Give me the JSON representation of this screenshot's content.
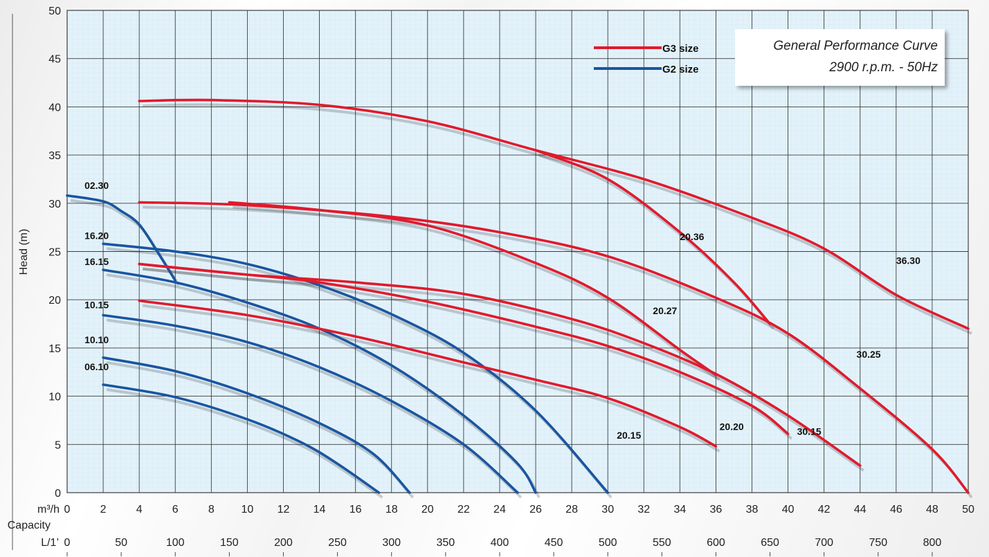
{
  "chart_data": {
    "type": "line",
    "title": "",
    "xlabel": "Capacity",
    "ylabel": "Head (m)",
    "x_unit_label": "m³/h",
    "x2_unit_label": "L/1’",
    "xlim": [
      0,
      50
    ],
    "ylim": [
      0,
      50
    ],
    "grid": true,
    "x_ticks": [
      0,
      2,
      4,
      6,
      8,
      10,
      12,
      14,
      16,
      18,
      20,
      22,
      24,
      26,
      28,
      30,
      32,
      34,
      36,
      38,
      40,
      42,
      44,
      46,
      48,
      50
    ],
    "y_ticks": [
      0,
      5,
      10,
      15,
      20,
      25,
      30,
      35,
      40,
      45,
      50
    ],
    "x2_ticks": [
      0,
      50,
      100,
      150,
      200,
      250,
      300,
      350,
      400,
      450,
      500,
      550,
      600,
      650,
      700,
      750,
      800
    ],
    "info_box": {
      "line1": "General Performance Curve",
      "line2": "2900 r.p.m. - 50Hz"
    },
    "legend": [
      {
        "name": "G3 size",
        "color": "#e11a2c"
      },
      {
        "name": "G2 size",
        "color": "#1a55a0"
      }
    ],
    "series": [
      {
        "label": "02.30",
        "group": "G2",
        "color": "#1a55a0",
        "points": [
          [
            0,
            30.8
          ],
          [
            2,
            30.2
          ],
          [
            3,
            29.2
          ],
          [
            4,
            27.8
          ],
          [
            5,
            25
          ],
          [
            6,
            22
          ]
        ],
        "label_pos": [
          2,
          30.5
        ]
      },
      {
        "label": "16.20",
        "group": "G2",
        "color": "#1a55a0",
        "points": [
          [
            2,
            25.8
          ],
          [
            6,
            25
          ],
          [
            10,
            23.7
          ],
          [
            14,
            21.5
          ],
          [
            18,
            18.5
          ],
          [
            22,
            14.5
          ],
          [
            26,
            8.5
          ],
          [
            30,
            0
          ]
        ],
        "label_pos": [
          2,
          25.3
        ]
      },
      {
        "label": "16.15",
        "group": "G2",
        "color": "#1a55a0",
        "points": [
          [
            2,
            23.1
          ],
          [
            6,
            21.8
          ],
          [
            10,
            19.7
          ],
          [
            14,
            17
          ],
          [
            18,
            13.2
          ],
          [
            22,
            8
          ],
          [
            25,
            3
          ],
          [
            26,
            0
          ]
        ],
        "label_pos": [
          2,
          22.6
        ]
      },
      {
        "label": "10.15",
        "group": "G2",
        "color": "#1a55a0",
        "points": [
          [
            2,
            18.4
          ],
          [
            6,
            17.3
          ],
          [
            10,
            15.6
          ],
          [
            14,
            13
          ],
          [
            18,
            9.5
          ],
          [
            22,
            5
          ],
          [
            25,
            0
          ]
        ],
        "label_pos": [
          2,
          18.1
        ]
      },
      {
        "label": "10.10",
        "group": "G2",
        "color": "#1a55a0",
        "points": [
          [
            2,
            14
          ],
          [
            6,
            12.6
          ],
          [
            10,
            10.3
          ],
          [
            14,
            7.2
          ],
          [
            17,
            4
          ],
          [
            19,
            0
          ]
        ],
        "label_pos": [
          2,
          14.5
        ]
      },
      {
        "label": "06.10",
        "group": "G2",
        "color": "#1a55a0",
        "points": [
          [
            2,
            11.2
          ],
          [
            6,
            9.9
          ],
          [
            10,
            7.6
          ],
          [
            13,
            5.2
          ],
          [
            15,
            3
          ],
          [
            17.3,
            0
          ]
        ],
        "label_pos": [
          2,
          11.7
        ]
      },
      {
        "label": "36.30",
        "group": "G3",
        "color": "#e11a2c",
        "points": [
          [
            4,
            40.6
          ],
          [
            8,
            40.7
          ],
          [
            14,
            40.2
          ],
          [
            20,
            38.5
          ],
          [
            26,
            35.5
          ],
          [
            32,
            32.5
          ],
          [
            38,
            28.5
          ],
          [
            42,
            25.3
          ],
          [
            46,
            20.5
          ],
          [
            50,
            17
          ]
        ],
        "label_pos": [
          46,
          23.7
        ]
      },
      {
        "label": "20.36",
        "group": "G3",
        "color": "#e11a2c",
        "points": [
          [
            26,
            35.5
          ],
          [
            30,
            32.5
          ],
          [
            34,
            27
          ],
          [
            37,
            21.8
          ],
          [
            39,
            17.5
          ]
        ],
        "label_pos": [
          34,
          26.2
        ]
      },
      {
        "label": "30.25",
        "group": "G3",
        "color": "#e11a2c",
        "points": [
          [
            4,
            30.1
          ],
          [
            10,
            29.8
          ],
          [
            18,
            28.6
          ],
          [
            24,
            27
          ],
          [
            30,
            24.5
          ],
          [
            36,
            20.2
          ],
          [
            40,
            16.5
          ],
          [
            44,
            10.8
          ],
          [
            48,
            4.5
          ],
          [
            50,
            0
          ]
        ],
        "label_pos": [
          43.8,
          14
        ]
      },
      {
        "label": "20.27",
        "group": "G3",
        "color": "#e11a2c",
        "points": [
          [
            9,
            30.1
          ],
          [
            14,
            29.3
          ],
          [
            20,
            27.7
          ],
          [
            26,
            23.8
          ],
          [
            30,
            20.2
          ],
          [
            34,
            14.8
          ],
          [
            36,
            12.2
          ]
        ],
        "label_pos": [
          32.5,
          18.5
        ]
      },
      {
        "label": "30.15",
        "group": "G3",
        "color": "#e11a2c",
        "points": [
          [
            4,
            23.7
          ],
          [
            10,
            22.6
          ],
          [
            16,
            21.8
          ],
          [
            22,
            20.6
          ],
          [
            28,
            18
          ],
          [
            32,
            15.5
          ],
          [
            36,
            12.3
          ],
          [
            40,
            8
          ],
          [
            44,
            2.8
          ]
        ],
        "label_pos": [
          40.5,
          6
        ]
      },
      {
        "label": "20.20",
        "group": "G3",
        "color": "#e11a2c",
        "points": [
          [
            4,
            23.7
          ],
          [
            10,
            22.6
          ],
          [
            14,
            21.8
          ],
          [
            20,
            19.8
          ],
          [
            26,
            17.2
          ],
          [
            30,
            15.2
          ],
          [
            34,
            12.5
          ],
          [
            38,
            9
          ],
          [
            40,
            6.1
          ]
        ],
        "label_pos": [
          36.2,
          6.5
        ]
      },
      {
        "label": "20.15",
        "group": "G3",
        "color": "#e11a2c",
        "points": [
          [
            4,
            19.9
          ],
          [
            10,
            18.4
          ],
          [
            16,
            16.2
          ],
          [
            22,
            13.5
          ],
          [
            26,
            11.7
          ],
          [
            30,
            9.8
          ],
          [
            34,
            6.8
          ],
          [
            36,
            4.8
          ]
        ],
        "label_pos": [
          30.5,
          5.6
        ]
      }
    ]
  }
}
